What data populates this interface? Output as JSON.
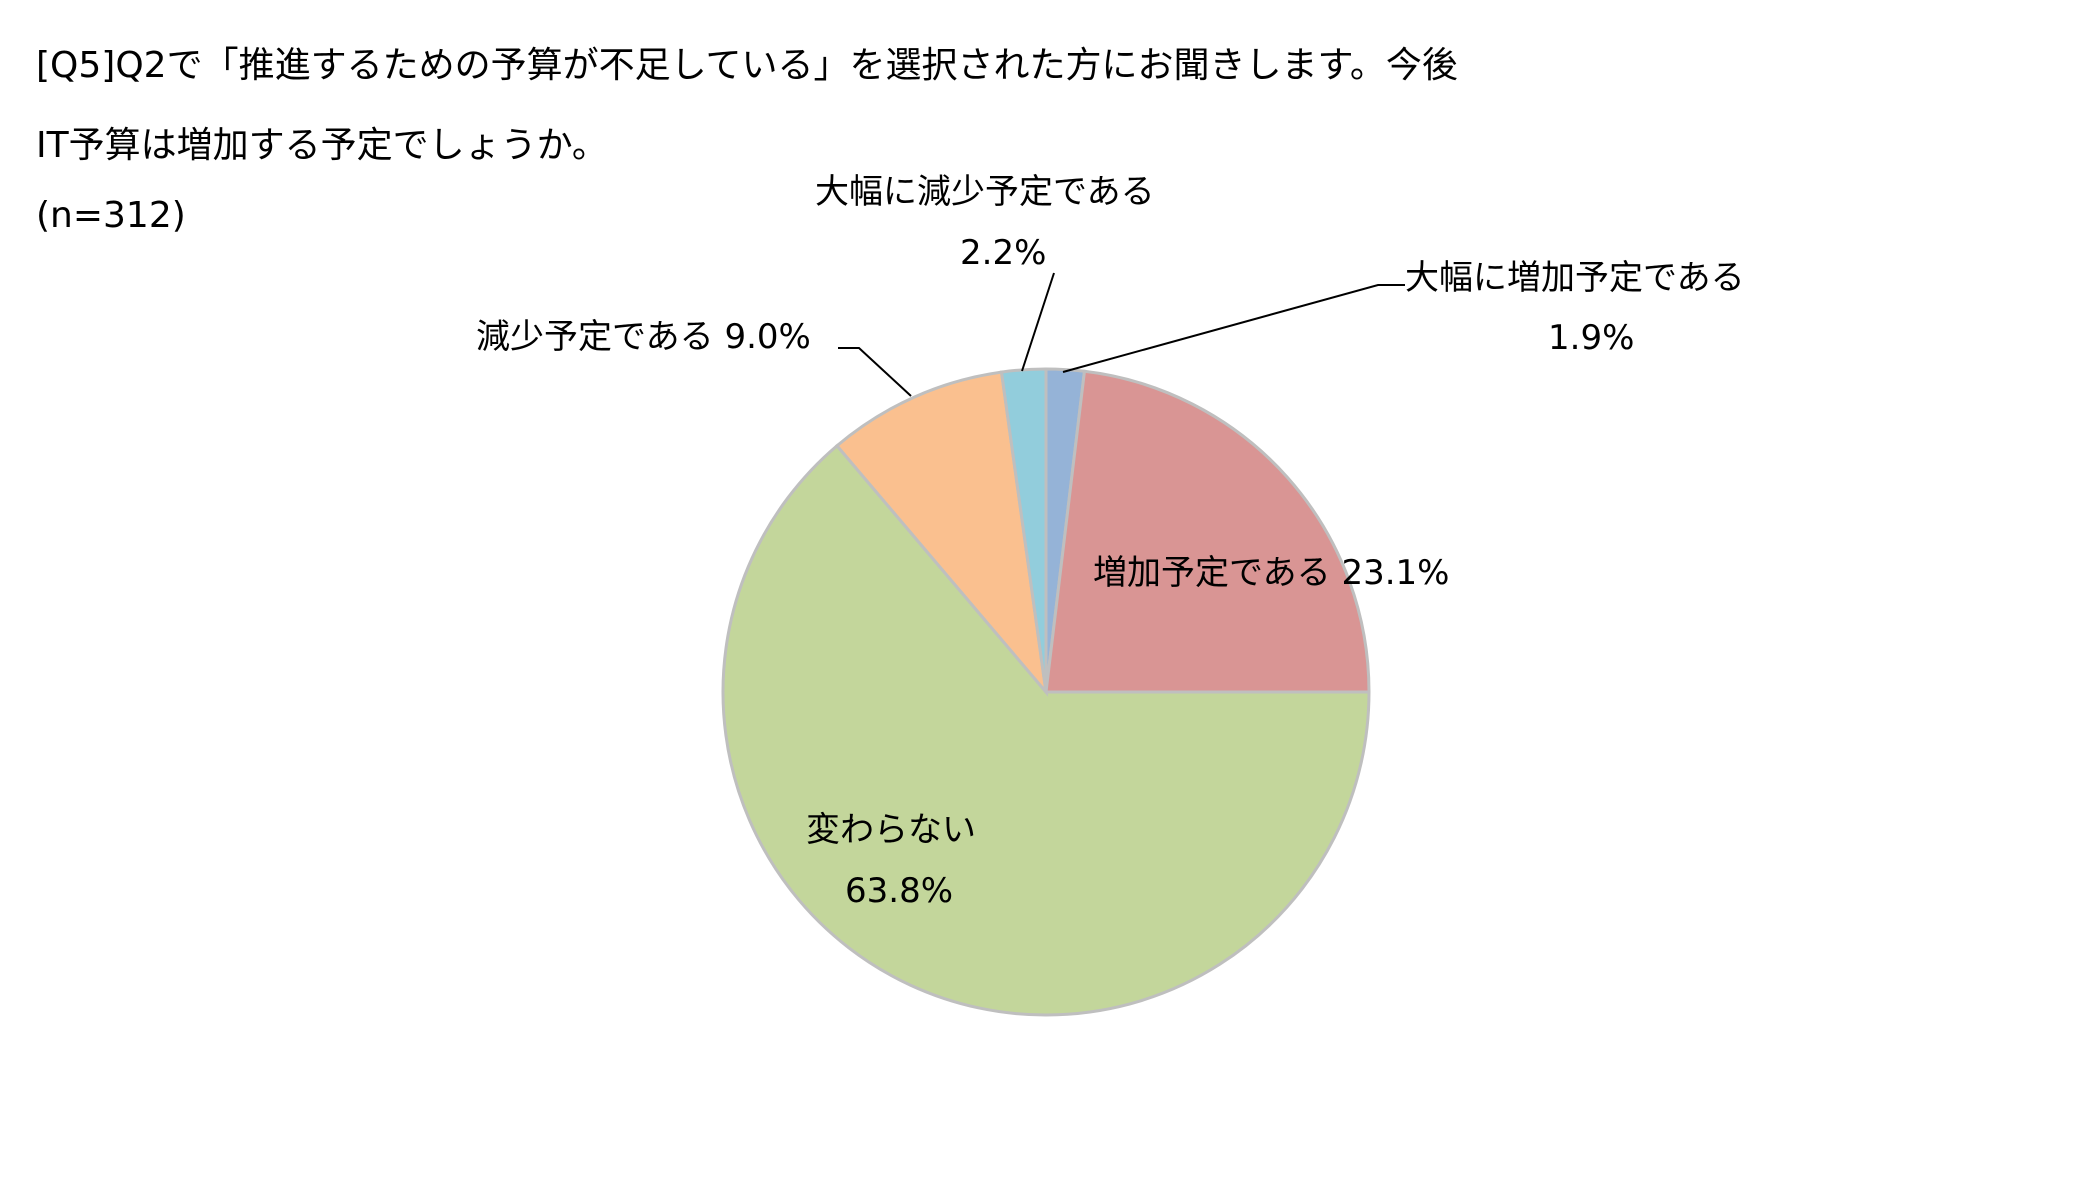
{
  "title": {
    "line1": "[Q5]Q2で「推進するための予算が不足している」を選択された方にお聞きします。今後",
    "line2": "IT予算は増加する予定でしょうか。",
    "sample": "(n=312)"
  },
  "chart_data": {
    "type": "pie",
    "start": "top",
    "direction": "clockwise",
    "legend": "none",
    "slices": [
      {
        "label": "大幅に増加予定である",
        "value": 1.9,
        "value_label": "1.9%",
        "color": "#95b3d7"
      },
      {
        "label": "増加予定である",
        "value": 23.1,
        "value_label": "23.1%",
        "color": "#d99594"
      },
      {
        "label": "変わらない",
        "value": 63.8,
        "value_label": "63.8%",
        "color": "#c3d69b"
      },
      {
        "label": "減少予定である",
        "value": 9.0,
        "value_label": "9.0%",
        "color": "#fac08f"
      },
      {
        "label": "大幅に減少予定である",
        "value": 2.2,
        "value_label": "2.2%",
        "color": "#92cddc"
      }
    ]
  }
}
